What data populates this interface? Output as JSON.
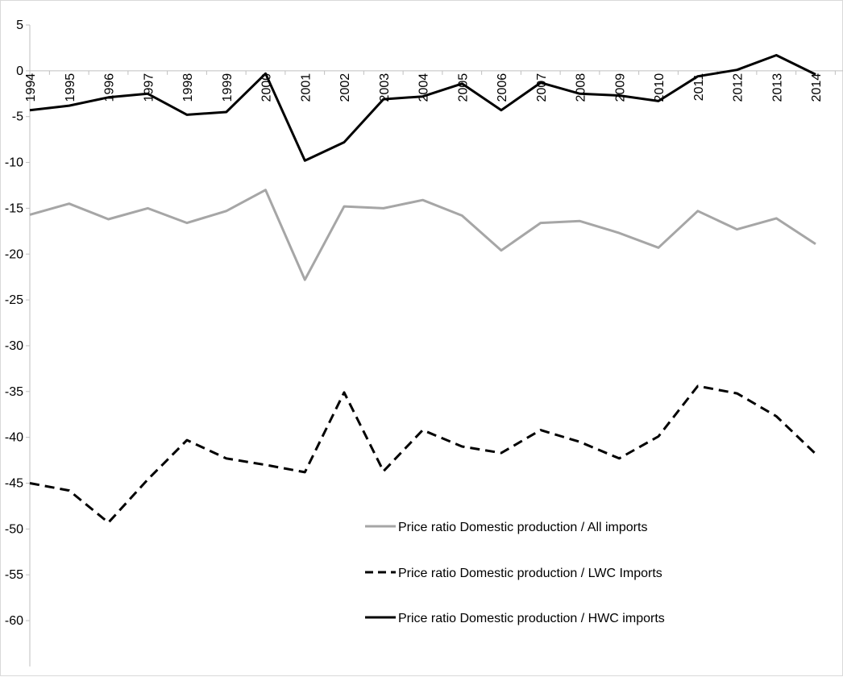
{
  "chart_data": {
    "type": "line",
    "title": "",
    "xlabel": "",
    "ylabel": "",
    "x": [
      "1994",
      "1995",
      "1996",
      "1997",
      "1998",
      "1999",
      "2000",
      "2001",
      "2002",
      "2003",
      "2004",
      "2005",
      "2006",
      "2007",
      "2008",
      "2009",
      "2010",
      "2011",
      "2012",
      "2013",
      "2014"
    ],
    "ylim": [
      -65,
      5
    ],
    "yticks": [
      5,
      0,
      -5,
      -10,
      -15,
      -20,
      -25,
      -30,
      -35,
      -40,
      -45,
      -50,
      -55,
      -60
    ],
    "grid": false,
    "legend_position": "bottom-right",
    "series": [
      {
        "name": "Price ratio Domestic production / All imports",
        "color": "#a6a6a6",
        "dash": "solid",
        "values": [
          -15.7,
          -14.5,
          -16.2,
          -15.0,
          -16.6,
          -15.3,
          -13.0,
          -22.8,
          -14.8,
          -15.0,
          -14.1,
          -15.8,
          -19.6,
          -16.6,
          -16.4,
          -17.7,
          -19.3,
          -15.3,
          -17.3,
          -16.1,
          -18.9
        ]
      },
      {
        "name": "Price ratio Domestic production / LWC Imports",
        "color": "#000000",
        "dash": "dashed",
        "values": [
          -45.0,
          -45.8,
          -49.3,
          -44.6,
          -40.3,
          -42.3,
          -43.0,
          -43.8,
          -35.1,
          -43.7,
          -39.2,
          -41.0,
          -41.7,
          -39.2,
          -40.5,
          -42.3,
          -39.9,
          -34.4,
          -35.2,
          -37.7,
          -41.8
        ]
      },
      {
        "name": "Price ratio Domestic production / HWC imports",
        "color": "#000000",
        "dash": "solid",
        "values": [
          -4.3,
          -3.8,
          -2.9,
          -2.5,
          -4.8,
          -4.5,
          -0.3,
          -9.8,
          -7.8,
          -3.1,
          -2.8,
          -1.4,
          -4.3,
          -1.3,
          -2.5,
          -2.7,
          -3.3,
          -0.6,
          0.1,
          1.7,
          -0.4
        ]
      }
    ]
  }
}
